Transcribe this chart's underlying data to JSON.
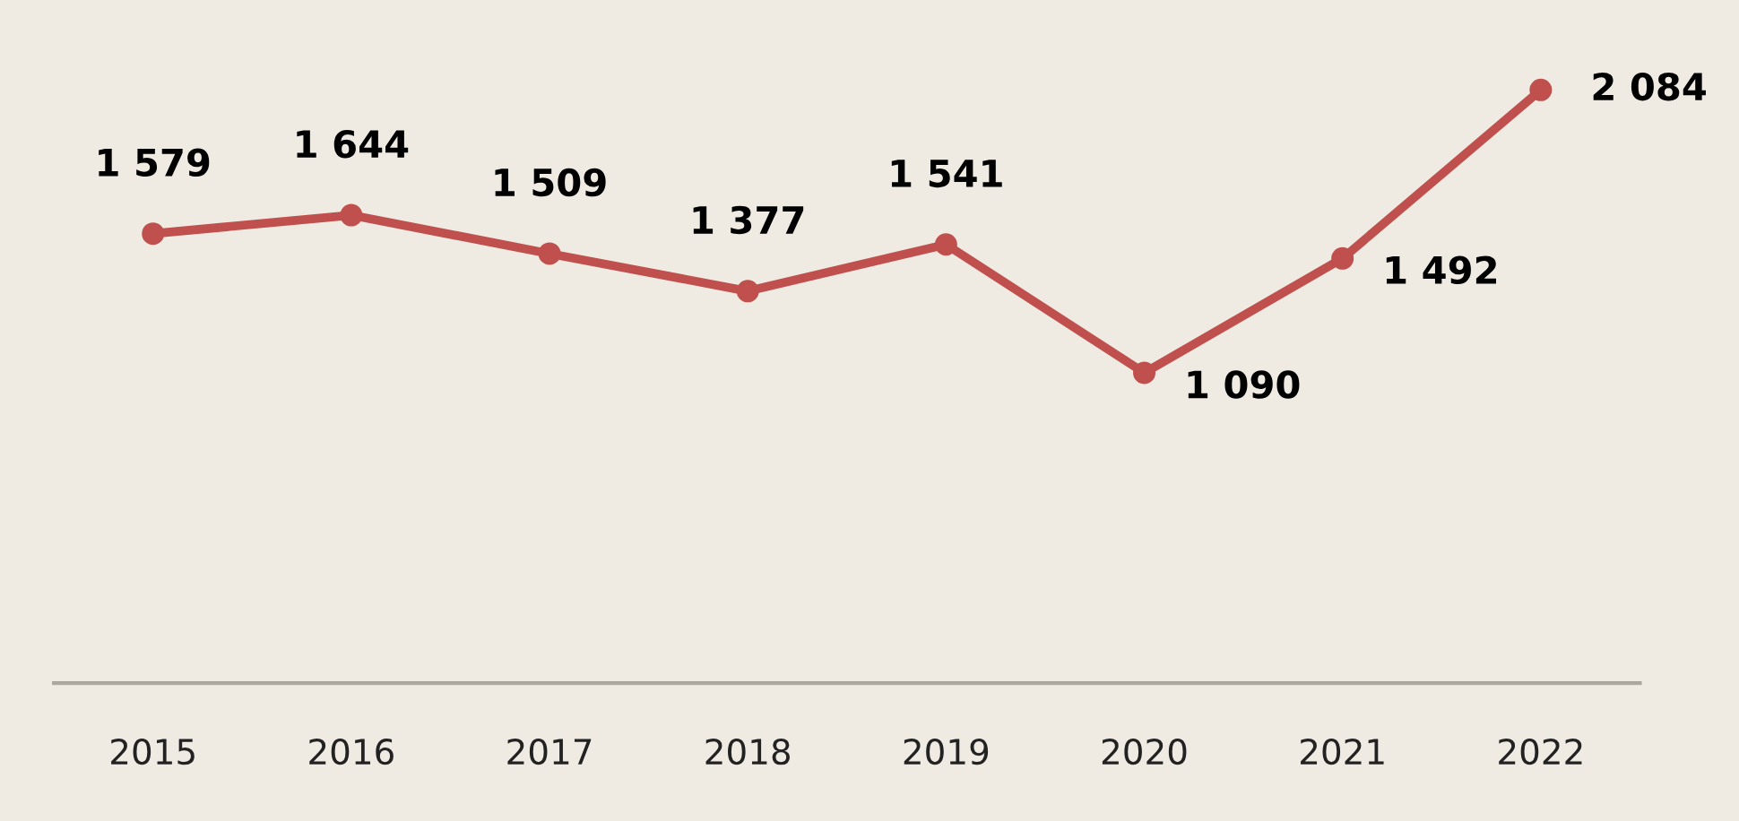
{
  "chart_data": {
    "type": "line",
    "categories": [
      "2015",
      "2016",
      "2017",
      "2018",
      "2019",
      "2020",
      "2021",
      "2022"
    ],
    "series": [
      {
        "color": "#c0504d",
        "values": [
          1579,
          1644,
          1509,
          1377,
          1541,
          1090,
          1492,
          2084
        ],
        "value_labels": [
          "1 579",
          "1 644",
          "1 509",
          "1 377",
          "1 541",
          "1 090",
          "1 492",
          "2 084"
        ]
      }
    ],
    "ylim": [
      0,
      2400
    ],
    "marker": "circle",
    "line_style": "solid",
    "grid": false,
    "legend": false,
    "tick_labels": "x"
  }
}
